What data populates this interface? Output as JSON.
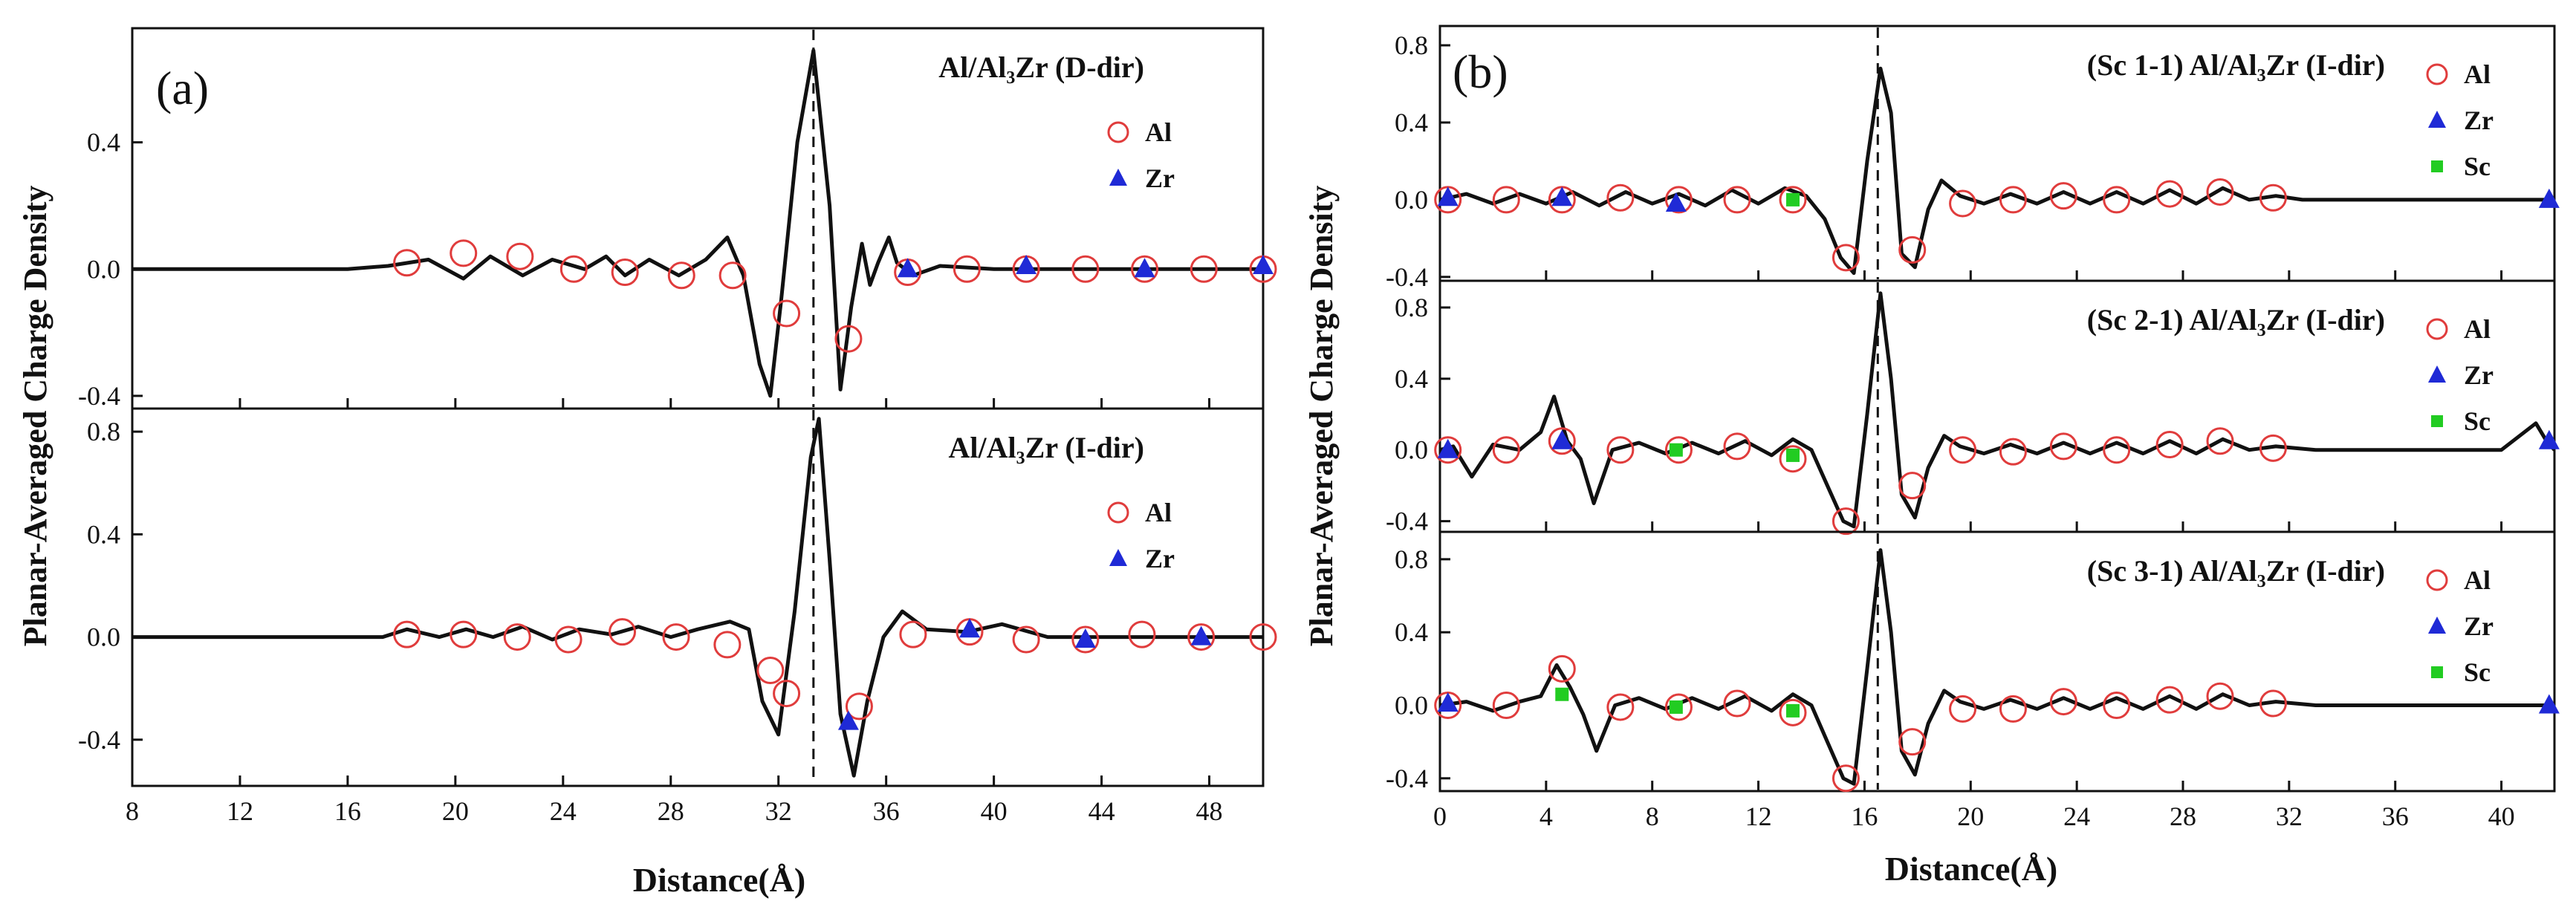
{
  "figure": {
    "x_axis_label": "Distance(Å)",
    "y_axis_label": "Planar-Averaged Charge Density"
  },
  "chart_data": [
    {
      "panel": "(a)",
      "type": "line",
      "xlabel": "Distance(Å)",
      "ylabel": "Planar-Averaged Charge Density",
      "xlim": [
        8,
        50
      ],
      "xticks": [
        8,
        12,
        16,
        20,
        24,
        28,
        32,
        36,
        40,
        44,
        48
      ],
      "interface_x": 33.3,
      "subplots": [
        {
          "title": "Al/Al₃Zr   (D-dir)",
          "ylim": [
            -0.44,
            0.76
          ],
          "yticks": [
            -0.4,
            0.0,
            0.4
          ],
          "legend": [
            "Al",
            "Zr"
          ],
          "curve": {
            "x": [
              8,
              16,
              17.5,
              19,
              20.3,
              21.3,
              22.5,
              23.6,
              24.8,
              25.6,
              26.3,
              27.2,
              28.3,
              29.3,
              30.1,
              30.7,
              31.3,
              31.7,
              32.1,
              32.7,
              33.3,
              33.9,
              34.3,
              34.7,
              35.1,
              35.4,
              35.7,
              36.1,
              36.4,
              37.0,
              38.0,
              40,
              44,
              48,
              50
            ],
            "y": [
              0,
              0,
              0.01,
              0.03,
              -0.03,
              0.04,
              -0.02,
              0.03,
              0.0,
              0.04,
              -0.02,
              0.03,
              -0.02,
              0.03,
              0.1,
              -0.02,
              -0.3,
              -0.4,
              -0.1,
              0.4,
              0.69,
              0.2,
              -0.38,
              -0.12,
              0.08,
              -0.05,
              0.02,
              0.1,
              0.02,
              -0.02,
              0.01,
              0.0,
              0.0,
              0.0,
              0.0
            ]
          },
          "series": [
            {
              "name": "Al",
              "x": [
                18.2,
                20.3,
                22.4,
                24.4,
                26.3,
                28.4,
                30.3,
                32.3,
                34.6,
                36.8,
                39.0,
                41.2,
                43.4,
                45.6,
                47.8,
                50.0
              ],
              "y": [
                0.02,
                0.05,
                0.04,
                0.0,
                -0.01,
                -0.02,
                -0.02,
                -0.14,
                -0.22,
                -0.01,
                0.0,
                0.0,
                0.0,
                0.0,
                0.0,
                0.0
              ]
            },
            {
              "name": "Zr",
              "x": [
                36.8,
                41.2,
                45.6,
                50.0
              ],
              "y": [
                0.0,
                0.01,
                0.0,
                0.01
              ]
            }
          ]
        },
        {
          "title": "Al/Al₃Zr   (I-dir)",
          "ylim": [
            -0.58,
            0.89
          ],
          "yticks": [
            -0.4,
            0.0,
            0.4,
            0.8
          ],
          "legend": [
            "Al",
            "Zr"
          ],
          "curve": {
            "x": [
              8,
              16,
              17.3,
              18.2,
              19.4,
              20.4,
              21.4,
              22.5,
              23.6,
              24.6,
              25.8,
              26.8,
              28.0,
              29.0,
              30.2,
              30.9,
              31.4,
              32.0,
              32.6,
              33.2,
              33.5,
              33.9,
              34.3,
              34.8,
              35.3,
              35.9,
              36.6,
              37.5,
              39.0,
              40.3,
              42,
              44,
              48,
              50
            ],
            "y": [
              0,
              0,
              0.0,
              0.03,
              0.0,
              0.03,
              0.0,
              0.04,
              -0.01,
              0.03,
              0.01,
              0.04,
              0.0,
              0.03,
              0.06,
              0.03,
              -0.25,
              -0.38,
              0.1,
              0.7,
              0.85,
              0.3,
              -0.3,
              -0.54,
              -0.25,
              0.0,
              0.1,
              0.03,
              0.02,
              0.05,
              0.0,
              0.0,
              0.0,
              0.0
            ]
          },
          "series": [
            {
              "name": "Al",
              "x": [
                18.2,
                20.3,
                22.3,
                24.2,
                26.2,
                28.2,
                30.1,
                31.7,
                32.3,
                35.0,
                37.0,
                39.1,
                41.2,
                43.4,
                45.5,
                47.7,
                50.0
              ],
              "y": [
                0.01,
                0.01,
                0.0,
                -0.01,
                0.02,
                0.0,
                -0.03,
                -0.13,
                -0.22,
                -0.27,
                0.01,
                0.02,
                -0.01,
                -0.01,
                0.01,
                0.0,
                0.0
              ]
            },
            {
              "name": "Zr",
              "x": [
                34.6,
                39.1,
                43.4,
                47.7
              ],
              "y": [
                -0.33,
                0.03,
                -0.01,
                0.0
              ]
            }
          ]
        }
      ]
    },
    {
      "panel": "(b)",
      "type": "line",
      "xlabel": "Distance(Å)",
      "ylabel": "Planar-Averaged Charge Density",
      "xlim": [
        0,
        42
      ],
      "xticks": [
        0,
        4,
        8,
        12,
        16,
        20,
        24,
        28,
        32,
        36,
        40
      ],
      "interface_x": 16.5,
      "subplots": [
        {
          "title": "(Sc 1-1)    Al/Al₃Zr  (I-dir)",
          "ylim": [
            -0.42,
            0.9
          ],
          "yticks": [
            -0.4,
            0.0,
            0.4,
            0.8
          ],
          "legend": [
            "Al",
            "Zr",
            "Sc"
          ],
          "curve": {
            "x": [
              0,
              1.0,
              2.0,
              3.0,
              4.0,
              5.0,
              6.0,
              7.0,
              8.0,
              9.0,
              10.0,
              11.0,
              12.0,
              13.0,
              13.8,
              14.5,
              15.1,
              15.6,
              16.1,
              16.6,
              17.0,
              17.4,
              17.9,
              18.4,
              18.9,
              19.6,
              20.5,
              21.5,
              22.5,
              23.5,
              24.5,
              25.5,
              26.5,
              27.5,
              28.5,
              29.5,
              30.5,
              31.5,
              32.5,
              34,
              36,
              38,
              40,
              42
            ],
            "y": [
              0,
              0.03,
              -0.02,
              0.03,
              -0.02,
              0.04,
              -0.03,
              0.04,
              -0.02,
              0.03,
              -0.03,
              0.05,
              -0.02,
              0.06,
              0.02,
              -0.1,
              -0.3,
              -0.38,
              0.2,
              0.68,
              0.45,
              -0.28,
              -0.35,
              -0.05,
              0.1,
              0.02,
              -0.02,
              0.03,
              -0.02,
              0.04,
              -0.02,
              0.04,
              -0.02,
              0.05,
              -0.02,
              0.06,
              0.0,
              0.02,
              0.0,
              0.0,
              0.0,
              0.0,
              0.0,
              0.0
            ]
          },
          "series": [
            {
              "name": "Al",
              "x": [
                0.3,
                2.5,
                4.6,
                6.8,
                9.0,
                11.2,
                13.3,
                15.3,
                17.8,
                19.7,
                21.6,
                23.5,
                25.5,
                27.5,
                29.4,
                31.4
              ],
              "y": [
                0.0,
                0.0,
                0.0,
                0.01,
                0.0,
                0.0,
                0.0,
                -0.3,
                -0.26,
                -0.02,
                0.0,
                0.02,
                0.0,
                0.03,
                0.04,
                0.01
              ]
            },
            {
              "name": "Zr",
              "x": [
                0.3,
                4.6,
                8.9,
                41.8
              ],
              "y": [
                0.01,
                0.01,
                -0.02,
                0.0
              ]
            },
            {
              "name": "Sc",
              "x": [
                13.3
              ],
              "y": [
                0.0
              ]
            }
          ]
        },
        {
          "title": "(Sc 2-1)    Al/Al₃Zr  (I-dir)",
          "ylim": [
            -0.46,
            0.95
          ],
          "yticks": [
            -0.4,
            0.0,
            0.4,
            0.8
          ],
          "legend": [
            "Al",
            "Zr",
            "Sc"
          ],
          "curve": {
            "x": [
              0,
              0.5,
              1.2,
              2.0,
              3.0,
              3.8,
              4.3,
              4.8,
              5.3,
              5.8,
              6.5,
              7.5,
              8.5,
              9.5,
              10.5,
              11.5,
              12.5,
              13.3,
              14.0,
              14.6,
              15.2,
              15.6,
              16.1,
              16.6,
              17.0,
              17.4,
              17.9,
              18.4,
              19.0,
              19.6,
              20.5,
              21.5,
              22.5,
              23.5,
              24.5,
              25.5,
              26.5,
              27.5,
              28.5,
              29.5,
              30.5,
              31.5,
              33,
              36,
              38,
              40,
              41.3,
              41.7,
              42
            ],
            "y": [
              0,
              0.02,
              -0.15,
              0.03,
              0.0,
              0.1,
              0.3,
              0.05,
              -0.05,
              -0.3,
              0.0,
              0.04,
              -0.02,
              0.04,
              -0.02,
              0.05,
              -0.03,
              0.06,
              0.0,
              -0.2,
              -0.4,
              -0.43,
              0.2,
              0.88,
              0.4,
              -0.25,
              -0.38,
              -0.1,
              0.08,
              0.02,
              -0.02,
              0.03,
              -0.02,
              0.04,
              -0.02,
              0.04,
              -0.02,
              0.05,
              -0.02,
              0.06,
              0.0,
              0.02,
              0.0,
              0.0,
              0.0,
              0.0,
              0.15,
              0.05,
              0.0
            ]
          },
          "series": [
            {
              "name": "Al",
              "x": [
                0.3,
                2.5,
                4.6,
                6.8,
                9.0,
                11.2,
                13.3,
                15.3,
                17.8,
                19.7,
                21.6,
                23.5,
                25.5,
                27.5,
                29.4,
                31.4
              ],
              "y": [
                0.0,
                0.0,
                0.05,
                0.0,
                0.0,
                0.02,
                -0.05,
                -0.4,
                -0.2,
                0.0,
                -0.01,
                0.02,
                0.0,
                0.03,
                0.05,
                0.01
              ]
            },
            {
              "name": "Zr",
              "x": [
                0.3,
                4.6,
                41.8
              ],
              "y": [
                0.0,
                0.05,
                0.05
              ]
            },
            {
              "name": "Sc",
              "x": [
                8.9,
                13.3
              ],
              "y": [
                0.0,
                -0.03
              ]
            }
          ]
        },
        {
          "title": "(Sc 3-1)    Al/Al₃Zr  (I-dir)",
          "ylim": [
            -0.47,
            0.95
          ],
          "yticks": [
            -0.4,
            0.0,
            0.4,
            0.8
          ],
          "legend": [
            "Al",
            "Zr",
            "Sc"
          ],
          "curve": {
            "x": [
              0,
              1.0,
              2.0,
              3.0,
              3.8,
              4.4,
              4.9,
              5.4,
              5.9,
              6.6,
              7.5,
              8.5,
              9.5,
              10.5,
              11.5,
              12.5,
              13.3,
              14.0,
              14.6,
              15.2,
              15.6,
              16.1,
              16.6,
              17.0,
              17.4,
              17.9,
              18.4,
              19.0,
              19.6,
              20.5,
              21.5,
              22.5,
              23.5,
              24.5,
              25.5,
              26.5,
              27.5,
              28.5,
              29.5,
              30.5,
              31.5,
              33,
              36,
              38,
              40,
              42
            ],
            "y": [
              0,
              0.02,
              -0.03,
              0.02,
              0.05,
              0.22,
              0.1,
              -0.05,
              -0.25,
              0.0,
              0.04,
              -0.02,
              0.04,
              -0.02,
              0.05,
              -0.03,
              0.06,
              0.0,
              -0.2,
              -0.4,
              -0.43,
              0.2,
              0.85,
              0.4,
              -0.25,
              -0.38,
              -0.1,
              0.08,
              0.02,
              -0.02,
              0.03,
              -0.02,
              0.04,
              -0.02,
              0.04,
              -0.02,
              0.05,
              -0.02,
              0.06,
              0.0,
              0.02,
              0.0,
              0.0,
              0.0,
              0.0,
              0.0
            ]
          },
          "series": [
            {
              "name": "Al",
              "x": [
                0.3,
                2.5,
                4.6,
                6.8,
                9.0,
                11.2,
                13.3,
                15.3,
                17.8,
                19.7,
                21.6,
                23.5,
                25.5,
                27.5,
                29.4,
                31.4
              ],
              "y": [
                0.0,
                0.0,
                0.2,
                -0.01,
                -0.01,
                0.01,
                -0.04,
                -0.4,
                -0.2,
                -0.02,
                -0.02,
                0.02,
                0.0,
                0.03,
                0.05,
                0.01
              ]
            },
            {
              "name": "Zr",
              "x": [
                0.3,
                41.8
              ],
              "y": [
                0.01,
                0.0
              ]
            },
            {
              "name": "Sc",
              "x": [
                4.6,
                8.9,
                13.3
              ],
              "y": [
                0.06,
                -0.01,
                -0.03
              ]
            }
          ]
        }
      ]
    }
  ]
}
